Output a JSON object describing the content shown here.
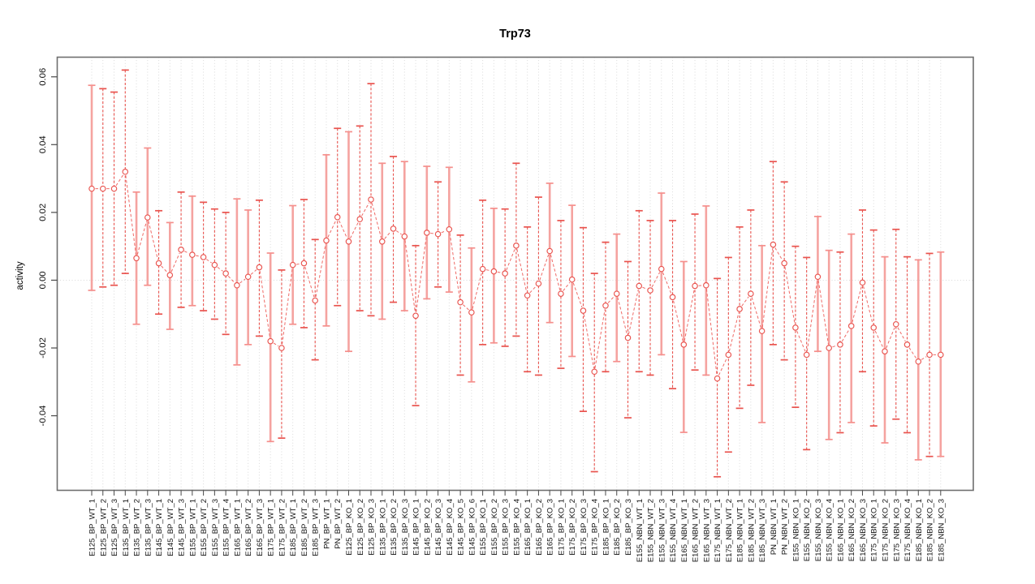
{
  "title": "Trp73",
  "chart_data": {
    "type": "scatter",
    "title": "Trp73",
    "xlabel": "",
    "ylabel": "activity",
    "ylim": [
      -0.062,
      0.0658
    ],
    "yticks": [
      -0.04,
      -0.02,
      0.0,
      0.02,
      0.04,
      0.06
    ],
    "ytick_labels": [
      "-0.04",
      "-0.02",
      "0.00",
      "0.02",
      "0.04",
      "0.06"
    ],
    "grid": "vertical dotted gridline at every category; dotted horizontal line at y=0",
    "legend": "none",
    "point_style": "open-circle",
    "line_style": "dashed-connector",
    "error_bars": true,
    "categories": [
      "E125_BP_WT_1",
      "E125_BP_WT_2",
      "E125_BP_WT_3",
      "E135_BP_WT_1",
      "E135_BP_WT_2",
      "E135_BP_WT_3",
      "E145_BP_WT_1",
      "E145_BP_WT_2",
      "E145_BP_WT_3",
      "E155_BP_WT_1",
      "E155_BP_WT_2",
      "E155_BP_WT_3",
      "E155_BP_WT_4",
      "E165_BP_WT_1",
      "E165_BP_WT_2",
      "E165_BP_WT_3",
      "E175_BP_WT_1",
      "E175_BP_WT_2",
      "E185_BP_WT_1",
      "E185_BP_WT_2",
      "E185_BP_WT_3",
      "PN_BP_WT_1",
      "PN_BP_WT_2",
      "E125_BP_KO_1",
      "E125_BP_KO_2",
      "E125_BP_KO_3",
      "E135_BP_KO_1",
      "E135_BP_KO_2",
      "E135_BP_KO_3",
      "E145_BP_KO_1",
      "E145_BP_KO_2",
      "E145_BP_KO_3",
      "E145_BP_KO_4",
      "E145_BP_KO_5",
      "E145_BP_KO_6",
      "E155_BP_KO_1",
      "E155_BP_KO_2",
      "E155_BP_KO_3",
      "E155_BP_KO_4",
      "E165_BP_KO_1",
      "E165_BP_KO_2",
      "E165_BP_KO_3",
      "E175_BP_KO_1",
      "E175_BP_KO_2",
      "E175_BP_KO_3",
      "E175_BP_KO_4",
      "E185_BP_KO_1",
      "E185_BP_KO_2",
      "E185_BP_KO_3",
      "E155_NBN_WT_1",
      "E155_NBN_WT_2",
      "E155_NBN_WT_3",
      "E155_NBN_WT_4",
      "E165_NBN_WT_1",
      "E165_NBN_WT_2",
      "E165_NBN_WT_3",
      "E175_NBN_WT_1",
      "E175_NBN_WT_2",
      "E185_NBN_WT_1",
      "E185_NBN_WT_2",
      "E185_NBN_WT_3",
      "PN_NBN_WT_1",
      "PN_NBN_WT_2",
      "E155_NBN_KO_1",
      "E155_NBN_KO_2",
      "E155_NBN_KO_3",
      "E155_NBN_KO_4",
      "E165_NBN_KO_1",
      "E165_NBN_KO_2",
      "E165_NBN_KO_3",
      "E175_NBN_KO_1",
      "E175_NBN_KO_2",
      "E175_NBN_KO_3",
      "E175_NBN_KO_4",
      "E185_NBN_KO_1",
      "E185_NBN_KO_2",
      "E185_NBN_KO_3"
    ],
    "series": [
      {
        "name": "activity",
        "values": [
          0.027,
          0.027,
          0.027,
          0.032,
          0.0065,
          0.0185,
          0.005,
          0.0015,
          0.009,
          0.0075,
          0.0068,
          0.0045,
          0.002,
          -0.0015,
          0.001,
          0.0038,
          -0.018,
          -0.02,
          0.0045,
          0.005,
          -0.006,
          0.0117,
          0.0186,
          0.0114,
          0.018,
          0.0238,
          0.0114,
          0.0152,
          0.0129,
          -0.0105,
          0.014,
          0.0136,
          0.015,
          -0.0065,
          -0.0095,
          0.0033,
          0.0026,
          0.002,
          0.0102,
          -0.0045,
          -0.001,
          0.0086,
          -0.004,
          0.0002,
          -0.009,
          -0.027,
          -0.0075,
          -0.004,
          -0.017,
          -0.0017,
          -0.003,
          0.0033,
          -0.005,
          -0.019,
          -0.0017,
          -0.0015,
          -0.029,
          -0.022,
          -0.0085,
          -0.004,
          -0.015,
          0.0105,
          0.005,
          -0.014,
          -0.022,
          0.001,
          -0.02,
          -0.019,
          -0.0135,
          -0.0007,
          -0.014,
          -0.021,
          -0.013,
          -0.019,
          -0.024,
          -0.022,
          -0.022
        ],
        "lower": [
          -0.003,
          -0.002,
          -0.0015,
          0.002,
          -0.013,
          -0.0015,
          -0.01,
          -0.0145,
          -0.008,
          -0.0075,
          -0.009,
          -0.0115,
          -0.016,
          -0.025,
          -0.019,
          -0.0165,
          -0.0476,
          -0.0466,
          -0.013,
          -0.014,
          -0.0235,
          -0.0135,
          -0.0075,
          -0.021,
          -0.009,
          -0.0105,
          -0.0115,
          -0.0065,
          -0.009,
          -0.037,
          -0.0055,
          -0.002,
          -0.0035,
          -0.028,
          -0.03,
          -0.019,
          -0.0185,
          -0.0195,
          -0.0165,
          -0.027,
          -0.028,
          -0.0125,
          -0.026,
          -0.0225,
          -0.0387,
          -0.0565,
          -0.027,
          -0.024,
          -0.0406,
          -0.027,
          -0.028,
          -0.022,
          -0.032,
          -0.0449,
          -0.0265,
          -0.028,
          -0.058,
          -0.0507,
          -0.0378,
          -0.031,
          -0.042,
          -0.019,
          -0.0235,
          -0.0375,
          -0.05,
          -0.021,
          -0.047,
          -0.045,
          -0.042,
          -0.027,
          -0.043,
          -0.048,
          -0.041,
          -0.045,
          -0.053,
          -0.052,
          -0.052
        ],
        "upper": [
          0.0575,
          0.0565,
          0.0555,
          0.062,
          0.026,
          0.039,
          0.0205,
          0.017,
          0.026,
          0.0248,
          0.023,
          0.021,
          0.02,
          0.024,
          0.0207,
          0.0236,
          0.008,
          0.003,
          0.022,
          0.0238,
          0.012,
          0.037,
          0.0448,
          0.0438,
          0.0455,
          0.058,
          0.0345,
          0.0365,
          0.035,
          0.0102,
          0.0336,
          0.029,
          0.0333,
          0.0133,
          0.0095,
          0.0236,
          0.0212,
          0.021,
          0.0345,
          0.0157,
          0.0245,
          0.0286,
          0.0176,
          0.0221,
          0.0155,
          0.002,
          0.0112,
          0.0136,
          0.0055,
          0.0205,
          0.0176,
          0.0257,
          0.0176,
          0.0055,
          0.0195,
          0.0219,
          0.0005,
          0.0067,
          0.0157,
          0.0207,
          0.0102,
          0.035,
          0.029,
          0.01,
          0.0067,
          0.0188,
          0.0088,
          0.0083,
          0.0136,
          0.0207,
          0.0148,
          0.0069,
          0.015,
          0.0069,
          0.006,
          0.0079,
          0.0083
        ]
      }
    ],
    "bar_styles": "sdddssdsdsdddssdsdsddsdsddsdsdsdsdsdsddddsdsdddsdddsdsdsddddsddddssdsddsddsdsds",
    "colors": {
      "solid_bar": "#f5a3a0",
      "solid_bar_cap": "#f58f8c",
      "dashed_bar": "#e9534e",
      "point": "#e9534e",
      "connector": "#ef6a66",
      "grid": "#d9d9d9",
      "frame": "#6e6e6e",
      "tick": "#4a4a4a",
      "text": "#111111"
    }
  }
}
